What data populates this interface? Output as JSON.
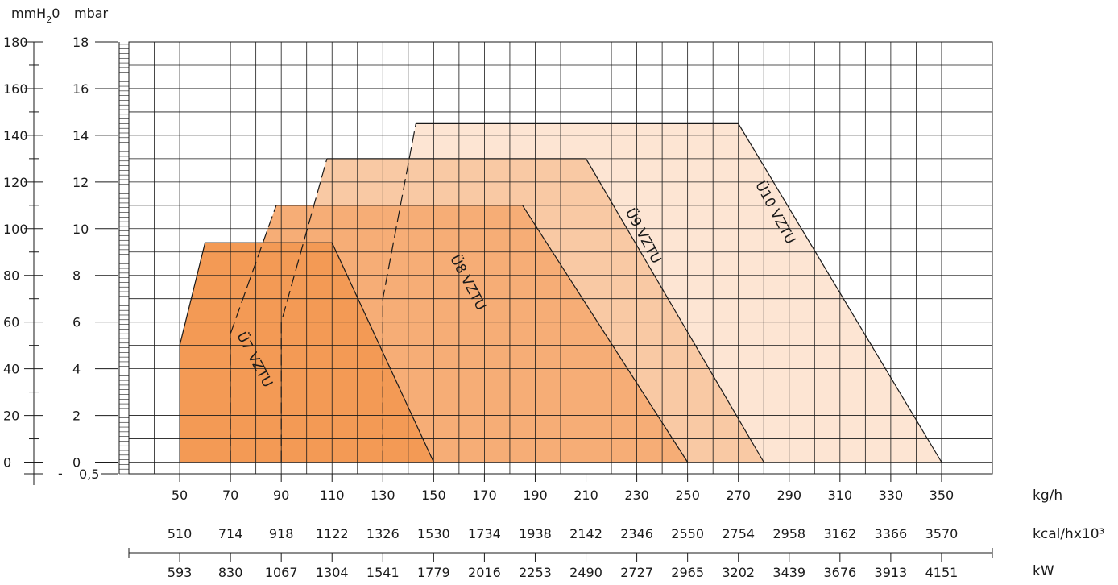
{
  "chart_data": {
    "type": "area",
    "y_axis_labels": {
      "mmh2o_unit": "mmH",
      "mmh2o_subscript": "2",
      "mmh2o_suffix": "0",
      "mbar_unit": "mbar"
    },
    "y_axis": {
      "mbar_range": [
        -0.5,
        18
      ],
      "mmh2o_ticks": [
        "180",
        "160",
        "140",
        "120",
        "100",
        "80",
        "60",
        "40",
        "20",
        "0"
      ],
      "mbar_ticks": [
        "18",
        "16",
        "14",
        "12",
        "10",
        "8",
        "6",
        "4",
        "2",
        "0"
      ],
      "mmh2o_tick_values": [
        180,
        160,
        140,
        120,
        100,
        80,
        60,
        40,
        20,
        0
      ],
      "mbar_tick_values": [
        18,
        16,
        14,
        12,
        10,
        8,
        6,
        4,
        2,
        0
      ],
      "neg_marker_left": "-",
      "neg_marker_right": "0,5",
      "neg_value": -0.5
    },
    "x_axis": {
      "range": [
        30,
        370
      ],
      "kgh_unit": "kg/h",
      "kcal_unit": "kcal/hx10³",
      "kw_unit": "kW",
      "kgh_values": [
        50,
        70,
        90,
        110,
        130,
        150,
        170,
        190,
        210,
        230,
        250,
        270,
        290,
        310,
        330,
        350
      ],
      "kgh_labels": [
        "50",
        "70",
        "90",
        "110",
        "130",
        "150",
        "170",
        "190",
        "210",
        "230",
        "250",
        "270",
        "290",
        "310",
        "330",
        "350"
      ],
      "kcal_labels": [
        "510",
        "714",
        "918",
        "1122",
        "1326",
        "1530",
        "1734",
        "1938",
        "2142",
        "2346",
        "2550",
        "2754",
        "2958",
        "3162",
        "3366",
        "3570"
      ],
      "kw_labels": [
        "593",
        "830",
        "1067",
        "1304",
        "1541",
        "1779",
        "2016",
        "2253",
        "2490",
        "2727",
        "2965",
        "3202",
        "3439",
        "3676",
        "3913",
        "4151"
      ]
    },
    "grid": true,
    "series": [
      {
        "name": "Ü10 VZTU",
        "color": "#fde5d3",
        "points": [
          [
            130,
            0
          ],
          [
            130,
            7
          ],
          [
            143,
            14.5
          ],
          [
            270,
            14.5
          ],
          [
            350,
            0
          ]
        ],
        "dashed_segment": [
          [
            130,
            0
          ],
          [
            130,
            7
          ],
          [
            143,
            14.5
          ]
        ],
        "label_at": [
          283,
          10.6
        ],
        "label_angle": 62
      },
      {
        "name": "Ü9 VZTU",
        "color": "#f9c9a4",
        "points": [
          [
            90,
            0
          ],
          [
            90,
            6
          ],
          [
            108,
            13
          ],
          [
            210,
            13
          ],
          [
            280,
            0
          ]
        ],
        "dashed_segment": [
          [
            90,
            0
          ],
          [
            90,
            6
          ],
          [
            108,
            13
          ]
        ],
        "label_at": [
          231,
          9.6
        ],
        "label_angle": 62
      },
      {
        "name": "Ü8 VZTU",
        "color": "#f6ad76",
        "points": [
          [
            70,
            0
          ],
          [
            70,
            5.5
          ],
          [
            88,
            11
          ],
          [
            185,
            11
          ],
          [
            250,
            0
          ]
        ],
        "dashed_segment": [
          [
            70,
            0
          ],
          [
            70,
            5.5
          ],
          [
            88,
            11
          ]
        ],
        "label_at": [
          162,
          7.6
        ],
        "label_angle": 62
      },
      {
        "name": "Ü7 VZTU",
        "color": "#f39a55",
        "points": [
          [
            50,
            0
          ],
          [
            50,
            5
          ],
          [
            60,
            9.4
          ],
          [
            110,
            9.4
          ],
          [
            150,
            0
          ]
        ],
        "dashed_segment": null,
        "label_at": [
          78,
          4.3
        ],
        "label_angle": 62
      }
    ]
  }
}
